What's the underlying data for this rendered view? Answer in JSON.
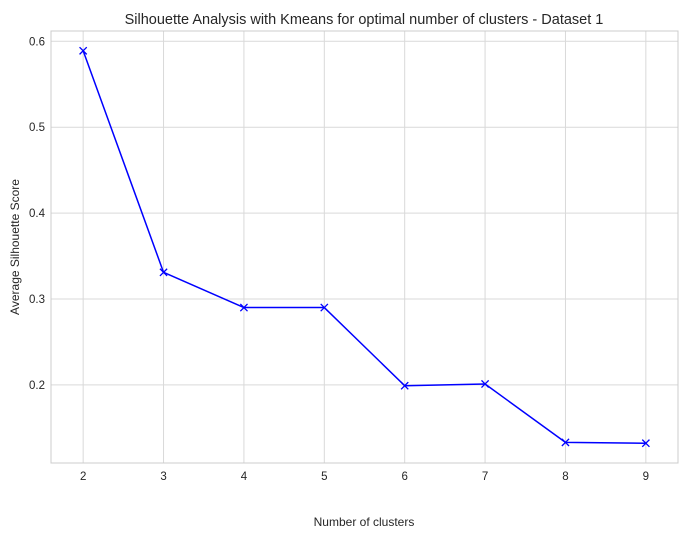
{
  "chart_data": {
    "type": "line",
    "title": "Silhouette Analysis with Kmeans for optimal number of clusters - Dataset 1",
    "xlabel": "Number of clusters",
    "ylabel": "Average Silhouette Score",
    "x": [
      2,
      3,
      4,
      5,
      6,
      7,
      8,
      9
    ],
    "series": [
      {
        "values": [
          0.589,
          0.331,
          0.29,
          0.29,
          0.199,
          0.201,
          0.133,
          0.132
        ],
        "color": "#0000ff",
        "marker": "x"
      }
    ],
    "xlim": [
      1.6,
      9.4
    ],
    "ylim": [
      0.109,
      0.612
    ],
    "xticks": [
      2,
      3,
      4,
      5,
      6,
      7,
      8,
      9
    ],
    "yticks": [
      0.2,
      0.3,
      0.4,
      0.5,
      0.6
    ],
    "ytick_labels": [
      "0.2",
      "0.3",
      "0.4",
      "0.5",
      "0.6"
    ],
    "grid": true
  }
}
